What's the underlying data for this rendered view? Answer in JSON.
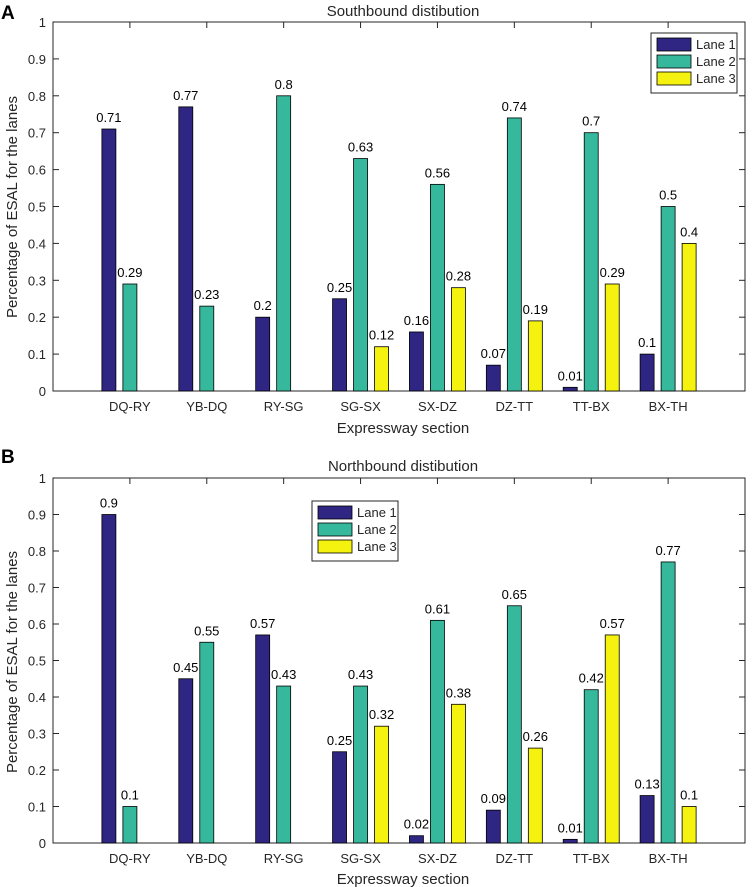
{
  "chart_data": [
    {
      "panel_label": "A",
      "type": "bar",
      "title": "Southbound distibution",
      "xlabel": "Expressway section",
      "ylabel": "Percentage of ESAL for the lanes",
      "ylim": [
        0,
        1
      ],
      "yticks": [
        "0",
        "0.1",
        "0.2",
        "0.3",
        "0.4",
        "0.5",
        "0.6",
        "0.7",
        "0.8",
        "0.9",
        "1"
      ],
      "grid": false,
      "legend_position": "top-right",
      "categories": [
        "DQ-RY",
        "YB-DQ",
        "RY-SG",
        "SG-SX",
        "SX-DZ",
        "DZ-TT",
        "TT-BX",
        "BX-TH"
      ],
      "series": [
        {
          "name": "Lane 1",
          "color": "#2e2682",
          "values": [
            0.71,
            0.77,
            0.2,
            0.25,
            0.16,
            0.07,
            0.01,
            0.1
          ],
          "labels": [
            "0.71",
            "0.77",
            "0.2",
            "0.25",
            "0.16",
            "0.07",
            "0.01",
            "0.1"
          ]
        },
        {
          "name": "Lane 2",
          "color": "#35b89b",
          "values": [
            0.29,
            0.23,
            0.8,
            0.63,
            0.56,
            0.74,
            0.7,
            0.5
          ],
          "labels": [
            "0.29",
            "0.23",
            "0.8",
            "0.63",
            "0.56",
            "0.74",
            "0.7",
            "0.5"
          ]
        },
        {
          "name": "Lane 3",
          "color": "#f4f20e",
          "values": [
            0,
            0,
            0,
            0.12,
            0.28,
            0.19,
            0.29,
            0.4
          ],
          "labels": [
            "",
            "",
            "",
            "0.12",
            "0.28",
            "0.19",
            "0.29",
            "0.4"
          ]
        }
      ]
    },
    {
      "panel_label": "B",
      "type": "bar",
      "title": "Northbound distibution",
      "xlabel": "Expressway section",
      "ylabel": "Percentage of ESAL for the lanes",
      "ylim": [
        0,
        1
      ],
      "yticks": [
        "0",
        "0.1",
        "0.2",
        "0.3",
        "0.4",
        "0.5",
        "0.6",
        "0.7",
        "0.8",
        "0.9",
        "1"
      ],
      "grid": false,
      "legend_position": "top-center",
      "categories": [
        "DQ-RY",
        "YB-DQ",
        "RY-SG",
        "SG-SX",
        "SX-DZ",
        "DZ-TT",
        "TT-BX",
        "BX-TH"
      ],
      "series": [
        {
          "name": "Lane 1",
          "color": "#2e2682",
          "values": [
            0.9,
            0.45,
            0.57,
            0.25,
            0.02,
            0.09,
            0.01,
            0.13
          ],
          "labels": [
            "0.9",
            "0.45",
            "0.57",
            "0.25",
            "0.02",
            "0.09",
            "0.01",
            "0.13"
          ]
        },
        {
          "name": "Lane 2",
          "color": "#35b89b",
          "values": [
            0.1,
            0.55,
            0.43,
            0.43,
            0.61,
            0.65,
            0.42,
            0.77
          ],
          "labels": [
            "0.1",
            "0.55",
            "0.43",
            "0.43",
            "0.61",
            "0.65",
            "0.42",
            "0.77"
          ]
        },
        {
          "name": "Lane 3",
          "color": "#f4f20e",
          "values": [
            0,
            0,
            0,
            0.32,
            0.38,
            0.26,
            0.57,
            0.1
          ],
          "labels": [
            "",
            "",
            "",
            "0.32",
            "0.38",
            "0.26",
            "0.57",
            "0.1"
          ]
        }
      ]
    }
  ]
}
